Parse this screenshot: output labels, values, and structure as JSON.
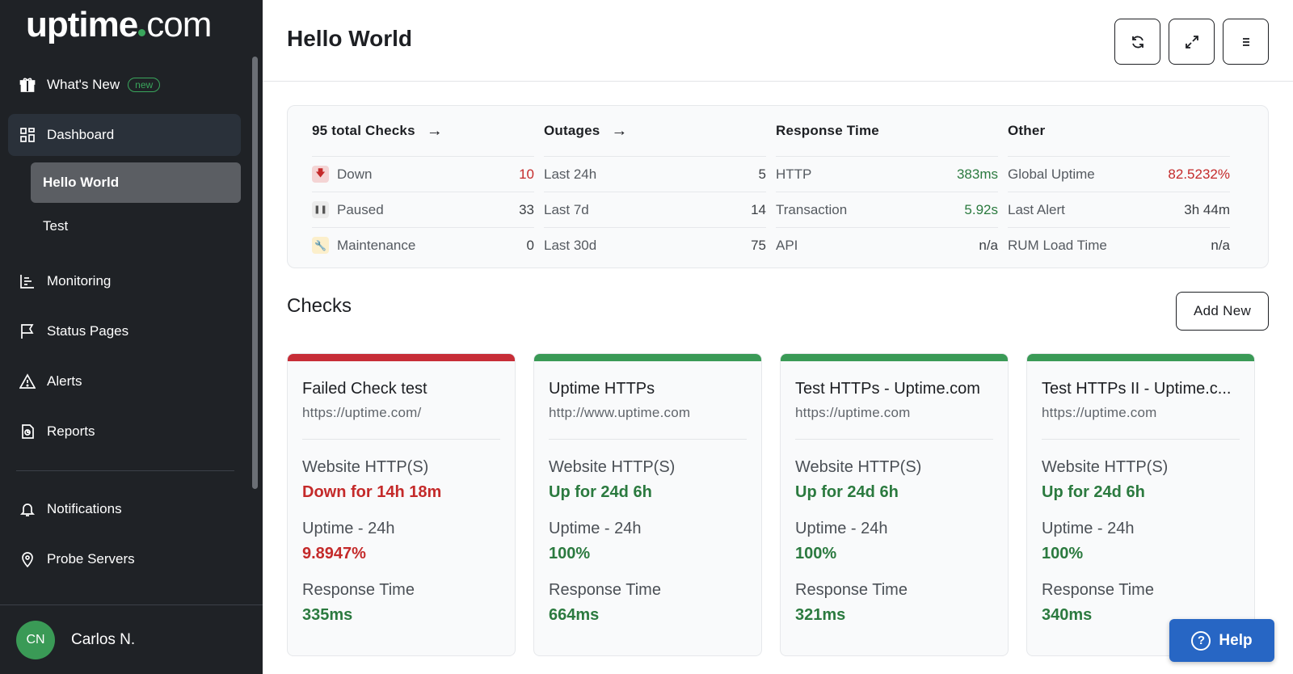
{
  "brand": {
    "logo_main": "uptime",
    "logo_suffix": "com"
  },
  "sidebar": {
    "whats_new": {
      "label": "What's New",
      "badge": "new",
      "icon": "gift-icon"
    },
    "items": [
      {
        "label": "Dashboard",
        "icon": "dashboard-icon",
        "active": true
      },
      {
        "label": "Monitoring",
        "icon": "monitoring-icon"
      },
      {
        "label": "Status Pages",
        "icon": "flag-icon"
      },
      {
        "label": "Alerts",
        "icon": "alert-triangle-icon"
      },
      {
        "label": "Reports",
        "icon": "reports-icon"
      },
      {
        "label": "Notifications",
        "icon": "bell-icon"
      },
      {
        "label": "Probe Servers",
        "icon": "location-pin-icon"
      }
    ],
    "sub_items": [
      {
        "label": "Hello World",
        "active": true
      },
      {
        "label": "Test"
      }
    ],
    "user": {
      "initials": "CN",
      "name": "Carlos N."
    }
  },
  "header": {
    "title": "Hello World",
    "buttons": [
      "refresh-icon",
      "expand-icon",
      "menu-icon"
    ]
  },
  "summary": {
    "checks": {
      "title": "95 total Checks",
      "rows": [
        {
          "label": "Down",
          "value": "10"
        },
        {
          "label": "Paused",
          "value": "33"
        },
        {
          "label": "Maintenance",
          "value": "0"
        }
      ]
    },
    "outages": {
      "title": "Outages",
      "rows": [
        {
          "label": "Last 24h",
          "value": "5"
        },
        {
          "label": "Last 7d",
          "value": "14"
        },
        {
          "label": "Last 30d",
          "value": "75"
        }
      ]
    },
    "response": {
      "title": "Response Time",
      "rows": [
        {
          "label": "HTTP",
          "value": "383ms"
        },
        {
          "label": "Transaction",
          "value": "5.92s"
        },
        {
          "label": "API",
          "value": "n/a"
        }
      ]
    },
    "other": {
      "title": "Other",
      "rows": [
        {
          "label": "Global Uptime",
          "value": "82.5232%"
        },
        {
          "label": "Last Alert",
          "value": "3h 44m"
        },
        {
          "label": "RUM Load Time",
          "value": "n/a"
        }
      ]
    }
  },
  "checks_section": {
    "title": "Checks",
    "add_button": "Add New",
    "uptime_label": "Uptime - 24h",
    "response_label": "Response Time",
    "cards": [
      {
        "name": "Failed Check test",
        "url": "https://uptime.com/",
        "type": "Website HTTP(S)",
        "status": "Down for 14h 18m",
        "uptime": "9.8947%",
        "response": "335ms",
        "state": "down"
      },
      {
        "name": "Uptime HTTPs",
        "url": "http://www.uptime.com",
        "type": "Website HTTP(S)",
        "status": "Up for 24d 6h",
        "uptime": "100%",
        "response": "664ms",
        "state": "up"
      },
      {
        "name": "Test HTTPs - Uptime.com",
        "url": "https://uptime.com",
        "type": "Website HTTP(S)",
        "status": "Up for 24d 6h",
        "uptime": "100%",
        "response": "321ms",
        "state": "up"
      },
      {
        "name": "Test HTTPs II - Uptime.c...",
        "url": "https://uptime.com",
        "type": "Website HTTP(S)",
        "status": "Up for 24d 6h",
        "uptime": "100%",
        "response": "340ms",
        "state": "up"
      }
    ]
  },
  "help": {
    "label": "Help"
  },
  "colors": {
    "sidebar_bg": "#1f2226",
    "brand_green": "#3a9a56",
    "down_red": "#c72d37",
    "help_blue": "#2766c4"
  }
}
